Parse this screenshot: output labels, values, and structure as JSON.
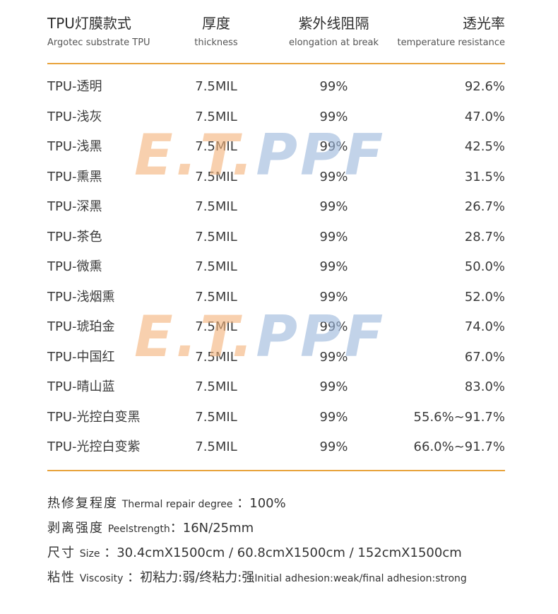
{
  "header": {
    "col1": {
      "main": "TPU灯膜款式",
      "sub": "Argotec substrate TPU"
    },
    "col2": {
      "main": "厚度",
      "sub": "thickness"
    },
    "col3": {
      "main": "紫外线阻隔",
      "sub": "elongation at break"
    },
    "col4": {
      "main": "透光率",
      "sub": "temperature resistance"
    }
  },
  "rows": [
    {
      "name": "TPU-透明",
      "thickness": "7.5MIL",
      "uv": "99%",
      "transmittance": "92.6%"
    },
    {
      "name": "TPU-浅灰",
      "thickness": "7.5MIL",
      "uv": "99%",
      "transmittance": "47.0%"
    },
    {
      "name": "TPU-浅黑",
      "thickness": "7.5MIL",
      "uv": "99%",
      "transmittance": "42.5%"
    },
    {
      "name": "TPU-熏黑",
      "thickness": "7.5MIL",
      "uv": "99%",
      "transmittance": "31.5%"
    },
    {
      "name": "TPU-深黑",
      "thickness": "7.5MIL",
      "uv": "99%",
      "transmittance": "26.7%"
    },
    {
      "name": "TPU-茶色",
      "thickness": "7.5MIL",
      "uv": "99%",
      "transmittance": "28.7%"
    },
    {
      "name": "TPU-微熏",
      "thickness": "7.5MIL",
      "uv": "99%",
      "transmittance": "50.0%"
    },
    {
      "name": "TPU-浅烟熏",
      "thickness": "7.5MIL",
      "uv": "99%",
      "transmittance": "52.0%"
    },
    {
      "name": "TPU-琥珀金",
      "thickness": "7.5MIL",
      "uv": "99%",
      "transmittance": "74.0%"
    },
    {
      "name": "TPU-中国红",
      "thickness": "7.5MIL",
      "uv": "99%",
      "transmittance": "67.0%"
    },
    {
      "name": "TPU-晴山蓝",
      "thickness": "7.5MIL",
      "uv": "99%",
      "transmittance": "83.0%"
    },
    {
      "name": "TPU-光控白变黑",
      "thickness": "7.5MIL",
      "uv": "99%",
      "transmittance": "55.6%~91.7%"
    },
    {
      "name": "TPU-光控白变紫",
      "thickness": "7.5MIL",
      "uv": "99%",
      "transmittance": "66.0%~91.7%"
    }
  ],
  "watermark": {
    "part1": "E.T.",
    "part2": "PPF",
    "color1": "#f4b27a",
    "color2": "#9bb6dc"
  },
  "accent_color": "#e8a33c",
  "notes": [
    {
      "cn": "热修复程度",
      "en": "Thermal repair degree",
      "value": "：100%"
    },
    {
      "cn": "剥离强度",
      "en": "Peelstrength",
      "value": "：16N/25mm"
    },
    {
      "cn": "尺寸",
      "en": "Size",
      "value": "：30.4cmX1500cm / 60.8cmX1500cm / 152cmX1500cm"
    },
    {
      "cn": "粘性",
      "en": "Viscosity",
      "value": "：初粘力:弱/终粘力:强",
      "tail": "Initial adhesion:weak/final adhesion:strong"
    }
  ]
}
